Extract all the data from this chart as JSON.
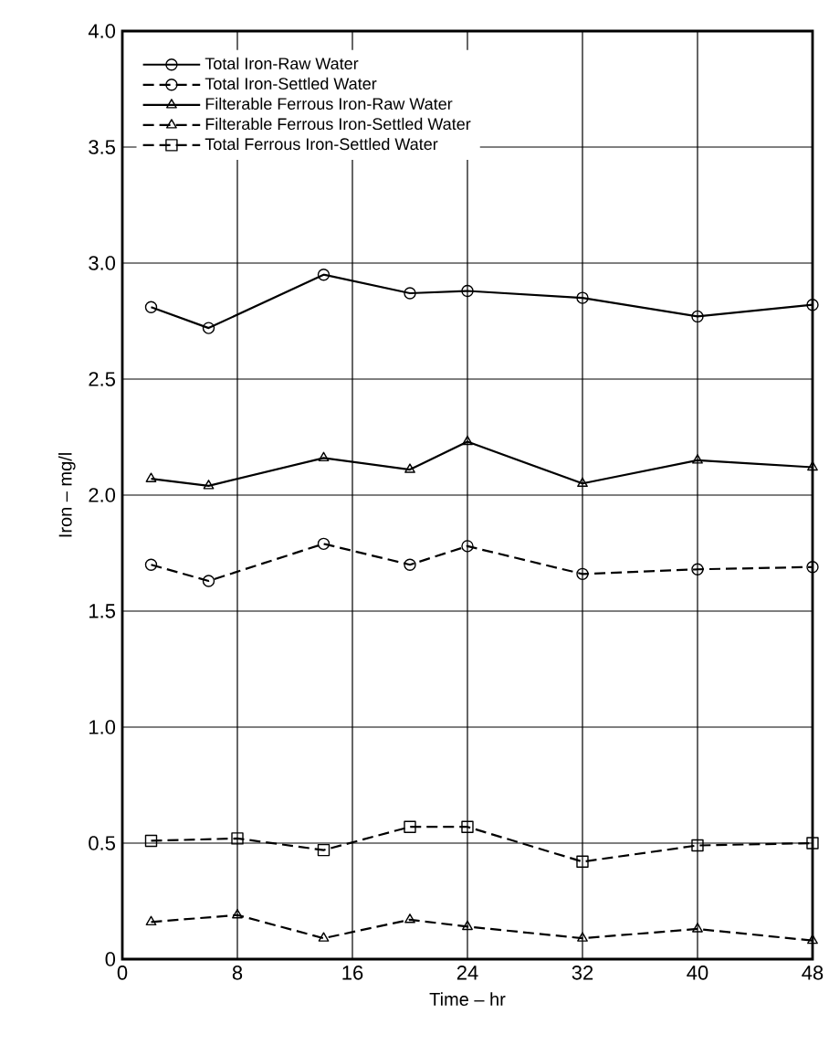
{
  "chart_data": {
    "type": "line",
    "xlabel": "Time – hr",
    "ylabel": "Iron – mg/l",
    "xlim": [
      0,
      48
    ],
    "xticks": [
      0,
      8,
      16,
      24,
      32,
      40,
      48
    ],
    "ylim": [
      0,
      4
    ],
    "yticks": [
      0,
      0.5,
      {
        "value": 1,
        "label": "1.0"
      },
      1.5,
      {
        "value": 2,
        "label": "2.0"
      },
      2.5,
      {
        "value": 3,
        "label": "3.0"
      },
      3.5,
      {
        "value": 4,
        "label": "4.0"
      }
    ],
    "grid": true,
    "legend": "top left",
    "series": [
      {
        "name": "Total Iron-Raw Water",
        "color": "#000000",
        "marker": "circle",
        "line_style": "solid",
        "x": [
          2,
          6,
          14,
          20,
          24,
          32,
          40,
          48
        ],
        "values": [
          2.81,
          2.72,
          2.95,
          2.87,
          2.88,
          2.85,
          2.77,
          2.82
        ]
      },
      {
        "name": "Total Iron-Settled Water",
        "color": "#000000",
        "marker": "circle",
        "line_style": "dashed",
        "x": [
          2,
          6,
          14,
          20,
          24,
          32,
          40,
          48
        ],
        "values": [
          1.7,
          1.63,
          1.79,
          1.7,
          1.78,
          1.66,
          1.68,
          1.69
        ]
      },
      {
        "name": "Filterable Ferrous Iron-Raw Water",
        "color": "#000000",
        "marker": "triangle",
        "line_style": "solid",
        "x": [
          2,
          6,
          14,
          20,
          24,
          32,
          40,
          48
        ],
        "values": [
          2.07,
          2.04,
          2.16,
          2.11,
          2.23,
          2.05,
          2.15,
          2.12
        ]
      },
      {
        "name": "Filterable Ferrous Iron-Settled Water",
        "color": "#000000",
        "marker": "triangle",
        "line_style": "dashed",
        "x": [
          2,
          8,
          14,
          20,
          24,
          32,
          40,
          48
        ],
        "values": [
          0.16,
          0.19,
          0.09,
          0.17,
          0.14,
          0.09,
          0.13,
          0.08
        ]
      },
      {
        "name": "Total Ferrous Iron-Settled Water",
        "color": "#000000",
        "marker": "square",
        "line_style": "dashed",
        "x": [
          2,
          8,
          14,
          20,
          24,
          32,
          40,
          48
        ],
        "values": [
          0.51,
          0.52,
          0.47,
          0.57,
          0.57,
          0.42,
          0.49,
          0.5
        ]
      }
    ]
  }
}
